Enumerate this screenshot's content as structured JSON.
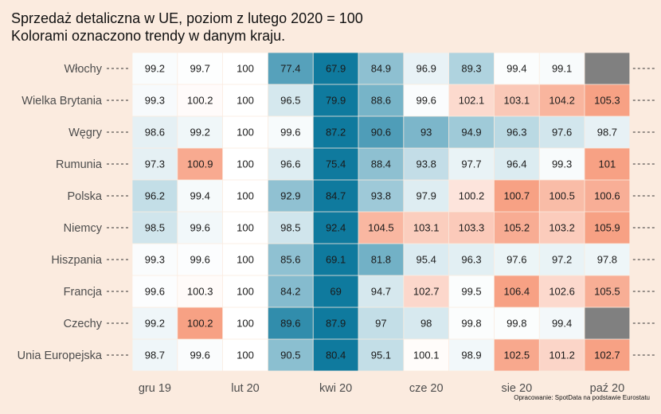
{
  "chart_data": {
    "type": "heatmap",
    "title": "Sprzedaż detaliczna w UE, poziom z lutego 2020 = 100",
    "subtitle": "Kolorami oznaczono trendy w danym kraju.",
    "caption": "Opracowanie: SpotData na podstawie Eurostatu",
    "x_tick_labels": [
      "gru 19",
      "",
      "lut 20",
      "",
      "kwi 20",
      "",
      "cze 20",
      "",
      "sie 20",
      "",
      "paź 20"
    ],
    "rows": [
      {
        "label": "Włochy",
        "values": [
          99.2,
          99.7,
          100,
          77.4,
          67.9,
          84.9,
          96.9,
          89.3,
          99.4,
          99.1,
          null
        ]
      },
      {
        "label": "Wielka Brytania",
        "values": [
          99.3,
          100.2,
          100,
          96.5,
          79.9,
          88.6,
          99.6,
          102.1,
          103.1,
          104.2,
          105.3
        ]
      },
      {
        "label": "Węgry",
        "values": [
          98.6,
          99.2,
          100,
          99.6,
          87.2,
          90.6,
          93,
          94.9,
          96.3,
          97.6,
          98.7
        ]
      },
      {
        "label": "Rumunia",
        "values": [
          97.3,
          100.9,
          100,
          96.6,
          75.4,
          88.4,
          93.8,
          97.7,
          96.4,
          99.3,
          101
        ]
      },
      {
        "label": "Polska",
        "values": [
          96.2,
          99.4,
          100,
          92.9,
          84.7,
          93.8,
          97.9,
          100.2,
          100.7,
          100.5,
          100.6
        ]
      },
      {
        "label": "Niemcy",
        "values": [
          98.5,
          99.6,
          100,
          98.5,
          92.4,
          104.5,
          103.1,
          103.3,
          105.2,
          103.2,
          105.9
        ]
      },
      {
        "label": "Hiszpania",
        "values": [
          99.3,
          99.6,
          100,
          85.6,
          69.1,
          81.8,
          95.4,
          96.3,
          97.6,
          97.2,
          97.8
        ]
      },
      {
        "label": "Francja",
        "values": [
          99.6,
          100.3,
          100,
          84.2,
          69,
          94.7,
          102.7,
          99.5,
          106.4,
          102.6,
          105.5
        ]
      },
      {
        "label": "Czechy",
        "values": [
          99.2,
          100.2,
          100,
          89.6,
          87.9,
          97,
          98,
          99.8,
          99.8,
          99.4,
          null
        ]
      },
      {
        "label": "Unia Europejska",
        "values": [
          98.7,
          99.6,
          100,
          90.5,
          80.4,
          95.1,
          100.1,
          98.9,
          102.5,
          101.2,
          102.7
        ]
      }
    ],
    "colors": {
      "low": "#0F7A9E",
      "mid": "#FFFFFF",
      "high": "#F7A184",
      "missing": "#808080",
      "background": "#FBEBDF"
    },
    "grid": false,
    "legend": "none"
  }
}
